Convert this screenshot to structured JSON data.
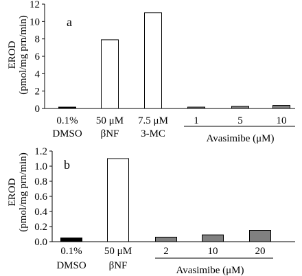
{
  "chart_data": [
    {
      "type": "bar",
      "panel_label": "a",
      "ylabel_line1": "EROD",
      "ylabel_line2": "(pmol/mg prn/min)",
      "ylim": [
        0,
        12
      ],
      "yticks": [
        "0",
        "2",
        "4",
        "6",
        "8",
        "10",
        "12"
      ],
      "categories": [
        {
          "line1": "0.1%",
          "line2": "DMSO"
        },
        {
          "line1": "50 μM",
          "line2": "βNF"
        },
        {
          "line1": "7.5 μM",
          "line2": "3-MC"
        },
        {
          "line1": "1",
          "line2": ""
        },
        {
          "line1": "5",
          "line2": ""
        },
        {
          "line1": "10",
          "line2": ""
        }
      ],
      "values": [
        0.15,
        7.9,
        11.0,
        0.15,
        0.25,
        0.35
      ],
      "bar_colors": [
        "#000000",
        "#ffffff",
        "#ffffff",
        "#808080",
        "#808080",
        "#808080"
      ],
      "group_label": "Avasimibe (μM)"
    },
    {
      "type": "bar",
      "panel_label": "b",
      "ylabel_line1": "EROD",
      "ylabel_line2": "(pmol/mg prn/min)",
      "ylim": [
        0,
        1.2
      ],
      "yticks": [
        "0.0",
        "0.2",
        "0.4",
        "0.6",
        "0.8",
        "1.0",
        "1.2"
      ],
      "categories": [
        {
          "line1": "0.1%",
          "line2": "DMSO"
        },
        {
          "line1": "50 μM",
          "line2": "βNF"
        },
        {
          "line1": "2",
          "line2": ""
        },
        {
          "line1": "10",
          "line2": ""
        },
        {
          "line1": "20",
          "line2": ""
        }
      ],
      "values": [
        0.05,
        1.1,
        0.06,
        0.09,
        0.15
      ],
      "bar_colors": [
        "#000000",
        "#ffffff",
        "#808080",
        "#808080",
        "#808080"
      ],
      "group_label": "Avasimibe (μM)"
    }
  ]
}
